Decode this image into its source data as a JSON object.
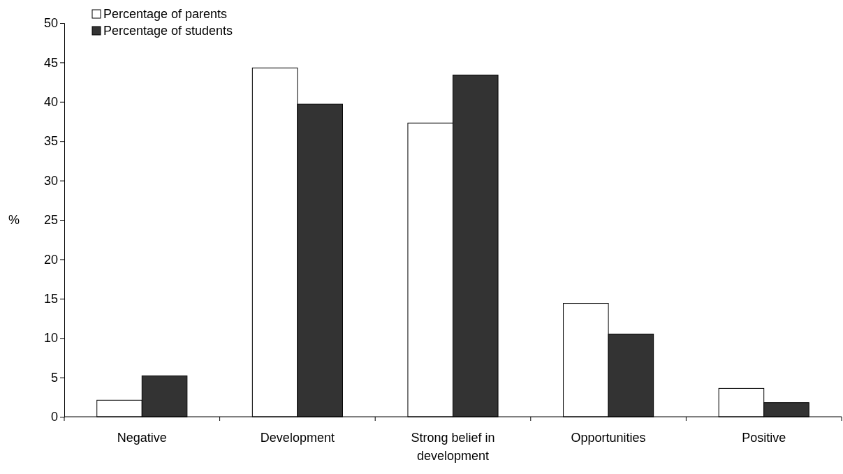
{
  "chart_data": {
    "type": "bar",
    "ylabel": "%",
    "categories": [
      "Negative",
      "Development",
      "Strong belief in development",
      "Opportunities",
      "Positive"
    ],
    "series": [
      {
        "name": "Percentage of parents",
        "color": "#ffffff",
        "values": [
          2.1,
          44.3,
          37.3,
          14.4,
          3.6
        ]
      },
      {
        "name": "Percentage of students",
        "color": "#333333",
        "values": [
          5.2,
          39.7,
          43.4,
          10.5,
          1.8
        ]
      }
    ],
    "ylim": [
      0,
      50
    ],
    "yticks": [
      0,
      5,
      10,
      15,
      20,
      25,
      30,
      35,
      40,
      45,
      50
    ],
    "grid": false,
    "legend": "top left"
  }
}
